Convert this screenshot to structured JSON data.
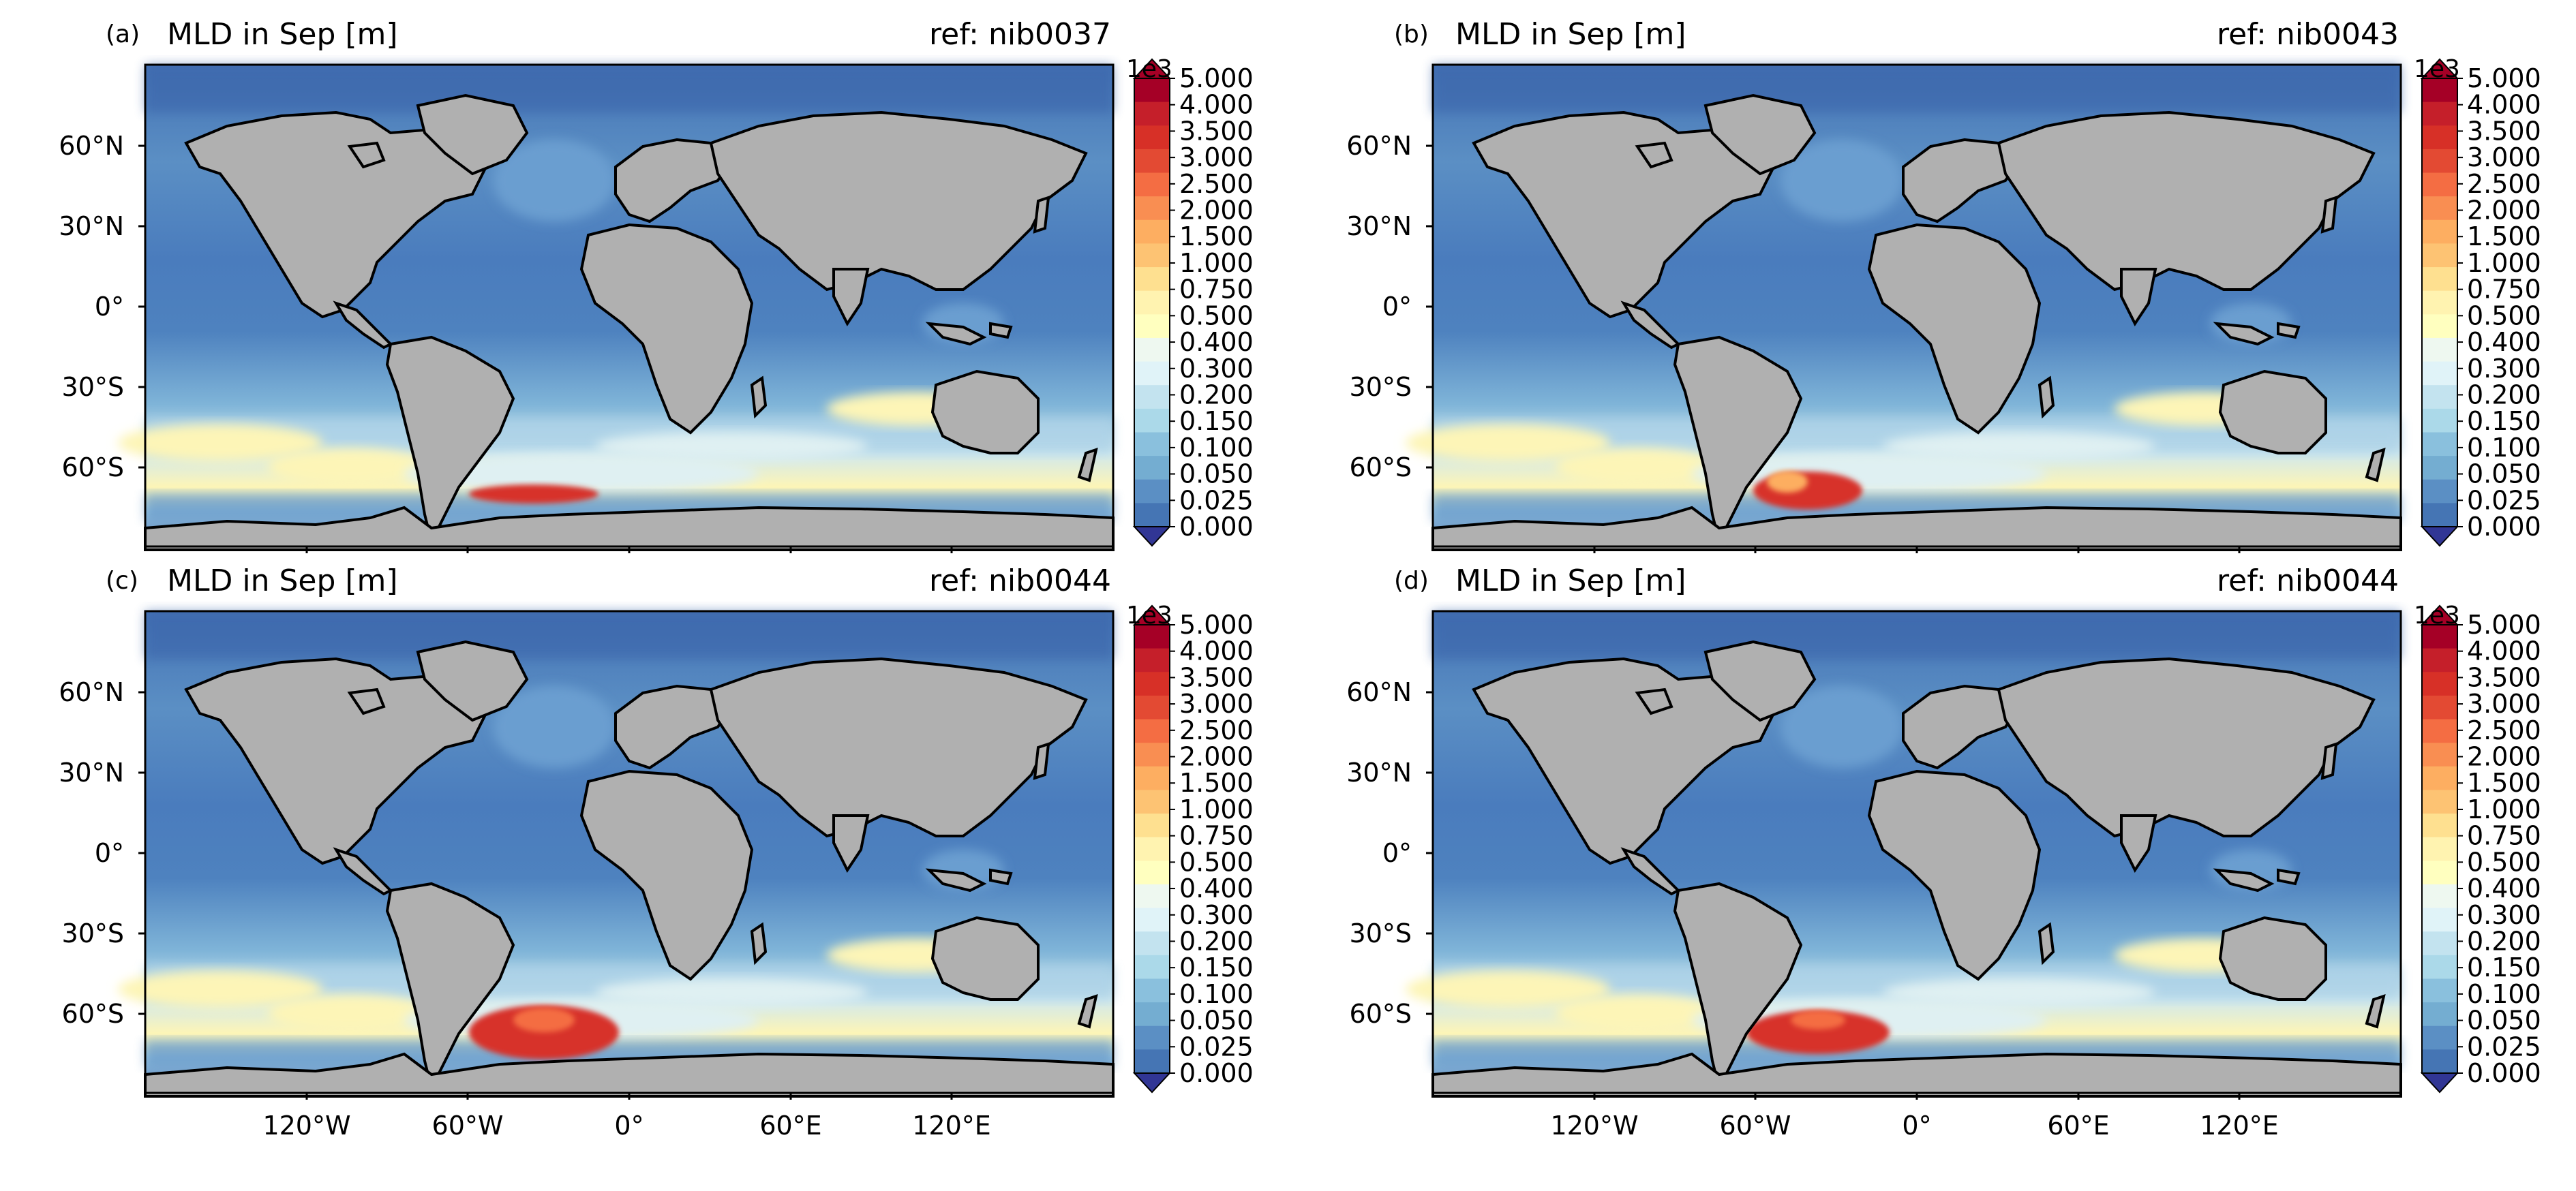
{
  "figure": {
    "panels": [
      {
        "label": "(a)",
        "title": "MLD in Sep [m]",
        "ref": "ref: nib0037",
        "antarctic_blob": "small"
      },
      {
        "label": "(b)",
        "title": "MLD in Sep [m]",
        "ref": "ref: nib0043",
        "antarctic_blob": "medium"
      },
      {
        "label": "(c)",
        "title": "MLD in Sep [m]",
        "ref": "ref: nib0044",
        "antarctic_blob": "large"
      },
      {
        "label": "(d)",
        "title": "MLD in Sep [m]",
        "ref": "ref: nib0044",
        "antarctic_blob": "large"
      }
    ],
    "lat_ticks": [
      "60°N",
      "30°N",
      "0°",
      "30°S",
      "60°S"
    ],
    "lon_ticks": [
      "120°W",
      "60°W",
      "0°",
      "60°E",
      "120°E"
    ],
    "colorbar": {
      "multiplier": "1e3",
      "ticks": [
        "5.000",
        "4.000",
        "3.500",
        "3.000",
        "2.500",
        "2.000",
        "1.500",
        "1.000",
        "0.750",
        "0.500",
        "0.400",
        "0.300",
        "0.200",
        "0.150",
        "0.100",
        "0.050",
        "0.025",
        "0.000"
      ],
      "colors": [
        "#a50026",
        "#c51f2a",
        "#d73027",
        "#e34a33",
        "#f46d43",
        "#f98e52",
        "#fdae61",
        "#fdc373",
        "#fee090",
        "#fff3b0",
        "#ffffbf",
        "#eef8f0",
        "#e0f3f8",
        "#c3e3ef",
        "#abd9e9",
        "#8ac0dd",
        "#74add1",
        "#5b8fc4",
        "#4575b4"
      ],
      "under_color": "#313695",
      "over_color": "#a50026"
    },
    "map_colors": {
      "land": "#b0b0b0",
      "ocean_deep_blue": "#4472b5",
      "ocean_mid_blue": "#6a9ed0",
      "ocean_light_blue": "#aed3e8",
      "ocean_pale": "#dff0f2",
      "southern_yellow": "#fdf5b7",
      "southern_orange": "#fdae61",
      "weddell_red": "#d7302b"
    }
  }
}
